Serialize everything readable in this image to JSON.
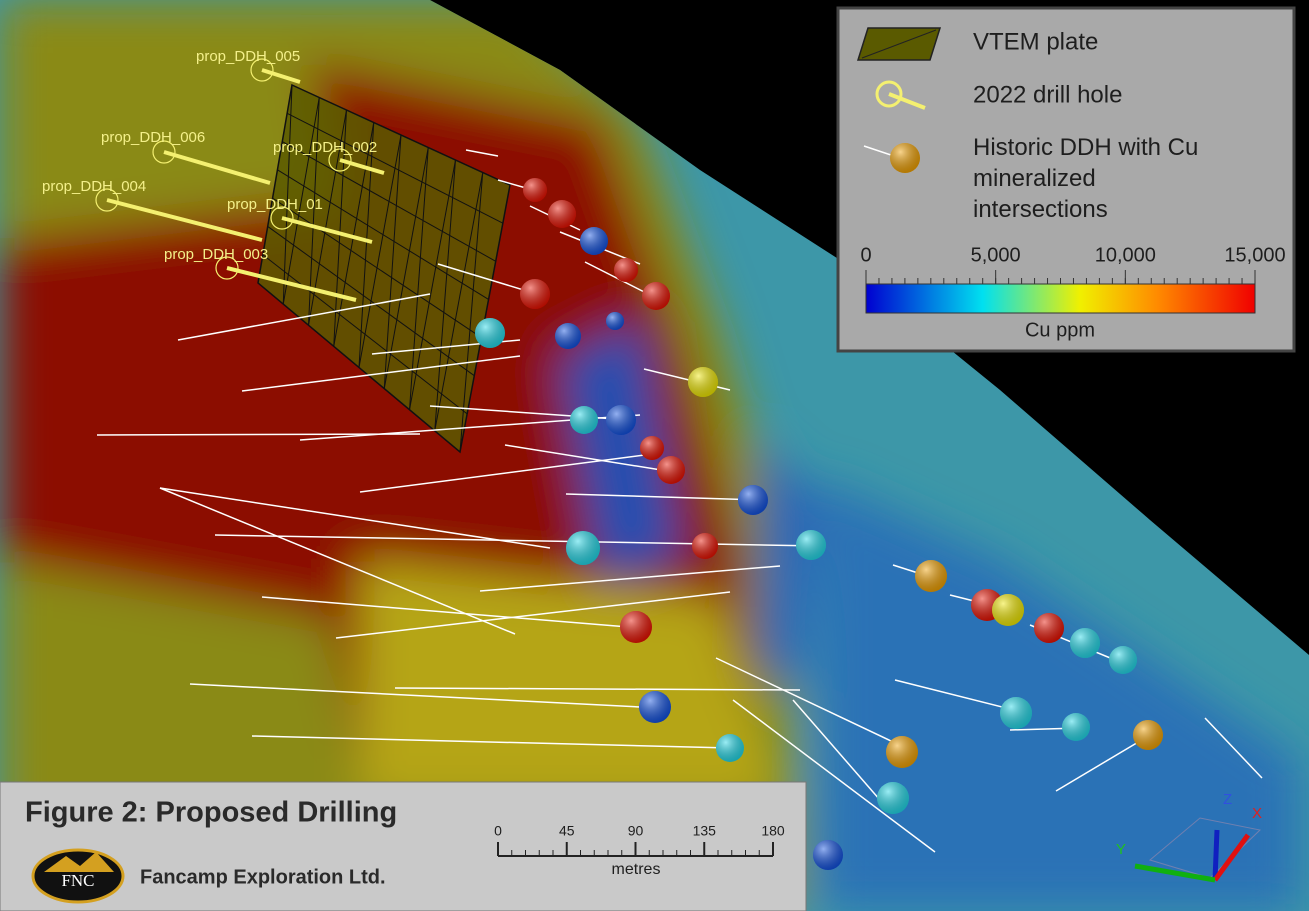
{
  "map": {
    "drill_hole_labels": [
      "prop_DDH_005",
      "prop_DDH_006",
      "prop_DDH_002",
      "prop_DDH_004",
      "prop_DDH_01",
      "prop_DDH_003"
    ]
  },
  "legend": {
    "items": [
      "VTEM plate",
      "2022 drill hole",
      "Historic DDH with Cu mineralized intersections"
    ],
    "colorbar": {
      "lim": [
        0,
        15000
      ],
      "ticks": [
        0,
        {
          "value": 5000,
          "label": "5,000"
        },
        {
          "value": 10000,
          "label": "10,000"
        },
        {
          "value": 15000,
          "label": "15,000"
        }
      ],
      "title": "Cu ppm"
    }
  },
  "scale_bar": {
    "lim": [
      0,
      180
    ],
    "ticks": [
      0,
      45,
      90,
      135,
      180
    ],
    "unit": "metres"
  },
  "axes": {
    "z": "Z",
    "x": "X",
    "y": "Y"
  },
  "footer": {
    "title": "Figure 2: Proposed Drilling",
    "logo": "FNC",
    "company": "Fancamp Exploration Ltd."
  }
}
